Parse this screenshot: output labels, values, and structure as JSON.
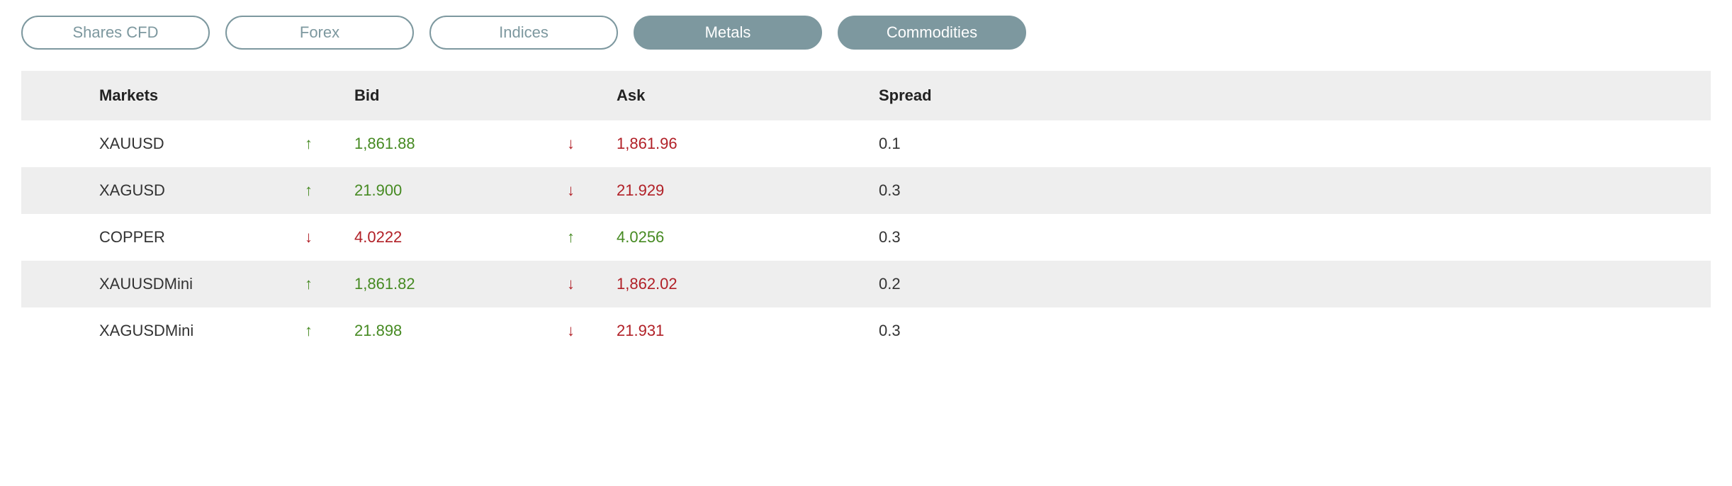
{
  "colors": {
    "tab_active_bg": "#7d989f",
    "tab_active_text": "#ffffff",
    "tab_inactive_border": "#7d989f",
    "tab_inactive_text": "#7d989f",
    "header_bg": "#eeeeee",
    "row_even_bg": "#eeeeee",
    "row_odd_bg": "#ffffff",
    "up_color": "#468a22",
    "down_color": "#b12027",
    "text_color": "#333333"
  },
  "tabs": [
    {
      "label": "Shares CFD",
      "active": false
    },
    {
      "label": "Forex",
      "active": false
    },
    {
      "label": "Indices",
      "active": false
    },
    {
      "label": "Metals",
      "active": true
    },
    {
      "label": "Commodities",
      "active": true
    }
  ],
  "table": {
    "headers": {
      "markets": "Markets",
      "bid": "Bid",
      "ask": "Ask",
      "spread": "Spread"
    },
    "rows": [
      {
        "market": "XAUUSD",
        "bid_dir": "up",
        "bid": "1,861.88",
        "ask_dir": "down",
        "ask": "1,861.96",
        "spread": "0.1"
      },
      {
        "market": "XAGUSD",
        "bid_dir": "up",
        "bid": "21.900",
        "ask_dir": "down",
        "ask": "21.929",
        "spread": "0.3"
      },
      {
        "market": "COPPER",
        "bid_dir": "down",
        "bid": "4.0222",
        "ask_dir": "up",
        "ask": "4.0256",
        "spread": "0.3"
      },
      {
        "market": "XAUUSDMini",
        "bid_dir": "up",
        "bid": "1,861.82",
        "ask_dir": "down",
        "ask": "1,862.02",
        "spread": "0.2"
      },
      {
        "market": "XAGUSDMini",
        "bid_dir": "up",
        "bid": "21.898",
        "ask_dir": "down",
        "ask": "21.931",
        "spread": "0.3"
      }
    ]
  },
  "icons": {
    "up": "↑",
    "down": "↓"
  }
}
